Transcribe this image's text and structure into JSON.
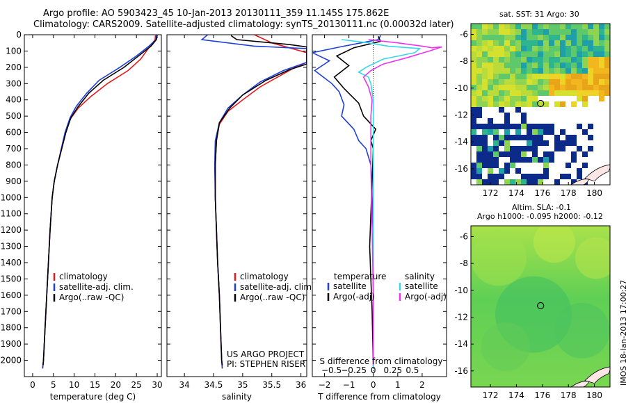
{
  "header": {
    "line1": "Argo profile: AO 5903423_45 10-Jan-2013 20130111_359 11.145S 175.862E",
    "line2": "Climatology: CARS2009. Satellite-adjusted climatology: synTS_20130111.nc (0.00032d later)"
  },
  "side_stamp": "IMOS 18-Jan-2013 17:00:27",
  "colors": {
    "clim": "#e41a1c",
    "sat": "#1f3fd6",
    "argo": "#000000",
    "sat_sal": "#36d8e6",
    "argo_sal": "#ee32ee"
  },
  "chart_data": [
    {
      "type": "line",
      "xlabel": "temperature (deg C)",
      "ylabel": "",
      "xlim": [
        -2,
        31
      ],
      "ylim": [
        2100,
        0
      ],
      "xticks": [
        0,
        5,
        10,
        15,
        20,
        25,
        30
      ],
      "yticks": [
        0,
        100,
        200,
        300,
        400,
        500,
        600,
        700,
        800,
        900,
        1000,
        1100,
        1200,
        1300,
        1400,
        1500,
        1600,
        1700,
        1800,
        1900,
        2000
      ],
      "legend": [
        "climatology",
        "satellite-adj. clim.",
        "Argo(..raw -QC)"
      ],
      "series": [
        {
          "name": "climatology",
          "color": "clim",
          "points": [
            [
              29.6,
              0
            ],
            [
              29.5,
              30
            ],
            [
              28,
              80
            ],
            [
              26,
              150
            ],
            [
              23,
              220
            ],
            [
              18,
              300
            ],
            [
              14,
              380
            ],
            [
              11,
              450
            ],
            [
              9,
              520
            ],
            [
              8,
              600
            ],
            [
              7,
              700
            ],
            [
              6,
              800
            ],
            [
              5.2,
              900
            ],
            [
              4.7,
              1000
            ],
            [
              4.2,
              1200
            ],
            [
              3.8,
              1400
            ],
            [
              3.4,
              1600
            ],
            [
              3,
              1800
            ],
            [
              2.6,
              2000
            ],
            [
              2.4,
              2050
            ]
          ]
        },
        {
          "name": "satellite-adj. clim.",
          "color": "sat",
          "points": [
            [
              29.9,
              0
            ],
            [
              29.7,
              30
            ],
            [
              28,
              70
            ],
            [
              25,
              130
            ],
            [
              21,
              200
            ],
            [
              16,
              280
            ],
            [
              13,
              360
            ],
            [
              10.5,
              440
            ],
            [
              9,
              510
            ],
            [
              7.8,
              600
            ],
            [
              6.9,
              700
            ],
            [
              6,
              800
            ],
            [
              5.2,
              900
            ],
            [
              4.7,
              1000
            ],
            [
              4.2,
              1200
            ],
            [
              3.8,
              1400
            ],
            [
              3.4,
              1600
            ],
            [
              3,
              1800
            ],
            [
              2.6,
              2000
            ],
            [
              2.4,
              2050
            ]
          ]
        },
        {
          "name": "Argo(..raw -QC)",
          "color": "argo",
          "points": [
            [
              30,
              5
            ],
            [
              29.8,
              30
            ],
            [
              28.5,
              70
            ],
            [
              26,
              120
            ],
            [
              22,
              200
            ],
            [
              17,
              280
            ],
            [
              13.5,
              360
            ],
            [
              11,
              440
            ],
            [
              9.2,
              510
            ],
            [
              8,
              600
            ],
            [
              7,
              700
            ],
            [
              6,
              800
            ],
            [
              5.2,
              900
            ],
            [
              4.7,
              1000
            ],
            [
              4.2,
              1200
            ],
            [
              3.8,
              1400
            ],
            [
              3.4,
              1600
            ],
            [
              3,
              1800
            ],
            [
              2.6,
              2000
            ],
            [
              2.5,
              2030
            ]
          ]
        }
      ]
    },
    {
      "type": "line",
      "xlabel": "salinity",
      "ylabel": "",
      "xlim": [
        33.7,
        36.1
      ],
      "ylim": [
        2100,
        0
      ],
      "xticks": [
        34,
        34.5,
        35,
        35.5,
        36
      ],
      "xtick_labels": [
        "34",
        "34.5",
        "35",
        "35.5",
        "36"
      ],
      "legend": [
        "climatology",
        "satellite-adj. clim.",
        "Argo(..raw -QC)"
      ],
      "annotations": [
        "US ARGO PROJECT",
        "PI: STEPHEN RISER"
      ],
      "series": [
        {
          "name": "climatology",
          "color": "clim",
          "points": [
            [
              35.2,
              0
            ],
            [
              35.5,
              50
            ],
            [
              36.1,
              110
            ],
            [
              36.1,
              170
            ],
            [
              35.9,
              200
            ],
            [
              35.6,
              260
            ],
            [
              35.3,
              320
            ],
            [
              35.0,
              400
            ],
            [
              34.75,
              470
            ],
            [
              34.6,
              550
            ],
            [
              34.55,
              650
            ],
            [
              34.53,
              800
            ],
            [
              34.53,
              1000
            ],
            [
              34.55,
              1200
            ],
            [
              34.57,
              1400
            ],
            [
              34.6,
              1600
            ],
            [
              34.62,
              1800
            ],
            [
              34.64,
              2000
            ],
            [
              34.65,
              2050
            ]
          ]
        },
        {
          "name": "satellite-adj. clim.",
          "color": "sat",
          "points": [
            [
              34.4,
              0
            ],
            [
              34.3,
              30
            ],
            [
              35.2,
              70
            ],
            [
              36.1,
              85
            ],
            [
              36.1,
              170
            ],
            [
              35.7,
              220
            ],
            [
              35.3,
              290
            ],
            [
              35.0,
              370
            ],
            [
              34.75,
              450
            ],
            [
              34.6,
              540
            ],
            [
              34.53,
              650
            ],
            [
              34.52,
              800
            ],
            [
              34.53,
              1000
            ],
            [
              34.55,
              1200
            ],
            [
              34.57,
              1400
            ],
            [
              34.6,
              1600
            ],
            [
              34.62,
              1800
            ],
            [
              34.64,
              2000
            ],
            [
              34.65,
              2050
            ]
          ]
        },
        {
          "name": "Argo(..raw -QC)",
          "color": "argo",
          "points": [
            [
              34.8,
              5
            ],
            [
              34.9,
              30
            ],
            [
              35.8,
              60
            ],
            [
              36.1,
              75
            ],
            [
              36.1,
              180
            ],
            [
              35.8,
              215
            ],
            [
              35.4,
              280
            ],
            [
              35.0,
              370
            ],
            [
              34.78,
              450
            ],
            [
              34.6,
              540
            ],
            [
              34.55,
              650
            ],
            [
              34.53,
              800
            ],
            [
              34.53,
              1000
            ],
            [
              34.55,
              1200
            ],
            [
              34.57,
              1400
            ],
            [
              34.6,
              1600
            ],
            [
              34.62,
              1800
            ],
            [
              34.64,
              2000
            ],
            [
              34.65,
              2030
            ]
          ]
        }
      ]
    },
    {
      "type": "line",
      "xlabel": "T difference from climatology",
      "top_label": "S difference from climatology",
      "xlim": [
        -2.5,
        3.0
      ],
      "ylim": [
        2100,
        0
      ],
      "xticks": [
        -2,
        -1,
        0,
        1,
        2
      ],
      "xtick_labels": [
        "−2",
        "−1",
        "0",
        "1",
        "2"
      ],
      "sticks": [
        -2,
        -1,
        0,
        1,
        2
      ],
      "stick_labels": [
        "−0.5",
        "−0.25",
        "0",
        "0.25",
        "0.5"
      ],
      "legend_groups": [
        {
          "title": "temperature",
          "items": [
            "satellite",
            "Argo(-adj)"
          ]
        },
        {
          "title": "salinity",
          "items": [
            "satellite",
            "Argo(-adj)"
          ]
        }
      ],
      "series": [
        {
          "name": "satellite",
          "color": "sat",
          "points": [
            [
              0.3,
              5
            ],
            [
              0.2,
              30
            ],
            [
              -1.2,
              70
            ],
            [
              -2.5,
              110
            ],
            [
              -1.8,
              160
            ],
            [
              -2.4,
              220
            ],
            [
              -1.7,
              300
            ],
            [
              -1.4,
              350
            ],
            [
              -1.2,
              430
            ],
            [
              -1.3,
              500
            ],
            [
              -0.8,
              580
            ],
            [
              -0.6,
              650
            ],
            [
              -0.3,
              700
            ],
            [
              -0.1,
              800
            ],
            [
              -0.05,
              1000
            ],
            [
              0,
              1200
            ],
            [
              0,
              2050
            ]
          ]
        },
        {
          "name": "Argo(-adj)",
          "color": "argo",
          "points": [
            [
              0.2,
              10
            ],
            [
              0.3,
              40
            ],
            [
              -0.8,
              80
            ],
            [
              -1.5,
              130
            ],
            [
              -1.0,
              190
            ],
            [
              -1.6,
              260
            ],
            [
              -1.2,
              330
            ],
            [
              -0.6,
              420
            ],
            [
              -0.4,
              500
            ],
            [
              0.1,
              580
            ],
            [
              -0.1,
              650
            ],
            [
              0,
              700
            ],
            [
              -0.05,
              900
            ],
            [
              -0.1,
              1100
            ],
            [
              -0.15,
              1300
            ],
            [
              -0.1,
              1500
            ],
            [
              -0.05,
              1700
            ],
            [
              -0.02,
              1900
            ],
            [
              0,
              2030
            ]
          ]
        },
        {
          "name": "satellite",
          "color": "sat_sal",
          "points": [
            [
              -1.3,
              30
            ],
            [
              -0.2,
              50
            ],
            [
              0.6,
              70
            ],
            [
              1.9,
              85
            ],
            [
              1.7,
              110
            ],
            [
              0.4,
              150
            ],
            [
              -0.3,
              200
            ],
            [
              -0.6,
              230
            ],
            [
              -0.2,
              260
            ],
            [
              -0.1,
              300
            ],
            [
              0,
              400
            ],
            [
              0,
              2050
            ]
          ]
        },
        {
          "name": "Argo(-adj)",
          "color": "argo_sal",
          "points": [
            [
              -0.2,
              30
            ],
            [
              1.0,
              50
            ],
            [
              2.0,
              70
            ],
            [
              2.4,
              80
            ],
            [
              2.8,
              75
            ],
            [
              2.3,
              100
            ],
            [
              1.4,
              140
            ],
            [
              0.4,
              180
            ],
            [
              -0.1,
              220
            ],
            [
              -0.4,
              260
            ],
            [
              -0.2,
              320
            ],
            [
              -0.05,
              400
            ],
            [
              -0.1,
              500
            ],
            [
              -0.1,
              800
            ],
            [
              -0.05,
              1200
            ],
            [
              0,
              1600
            ],
            [
              0,
              2030
            ]
          ]
        }
      ]
    },
    {
      "type": "heatmap",
      "title": "sat. SST: 31 Argo: 30",
      "xlim": [
        170.5,
        181.2
      ],
      "ylim": [
        -17.2,
        -5.2
      ],
      "xticks": [
        172,
        174,
        176,
        178,
        180
      ],
      "yticks": [
        -6,
        -8,
        -10,
        -12,
        -14,
        -16
      ],
      "marker": [
        175.862,
        -11.145
      ]
    },
    {
      "type": "heatmap",
      "title_lines": [
        "Altim. SLA: -0.1",
        "Argo h1000: -0.095 h2000: -0.12"
      ],
      "xlim": [
        170.5,
        181.2
      ],
      "ylim": [
        -17.2,
        -5.2
      ],
      "xticks": [
        172,
        174,
        176,
        178,
        180
      ],
      "yticks": [
        -6,
        -8,
        -10,
        -12,
        -14,
        -16
      ],
      "marker": [
        175.862,
        -11.145
      ]
    }
  ]
}
